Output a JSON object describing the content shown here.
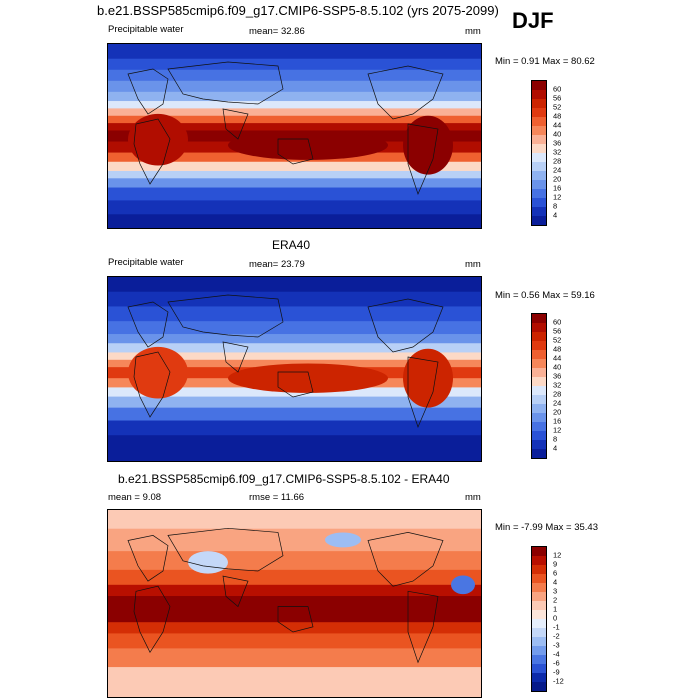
{
  "header": {
    "title": "b.e21.BSSP585cmip6.f09_g17.CMIP6-SSP5-8.5.102 (yrs 2075-2099)",
    "season": "DJF"
  },
  "panel1": {
    "variable": "Precipitable water",
    "mean_label": "mean=  32.86",
    "units": "mm",
    "minmax": "Min =   0.91 Max =  80.62",
    "colorbar_labels": [
      "60",
      "56",
      "52",
      "48",
      "44",
      "40",
      "36",
      "32",
      "28",
      "24",
      "20",
      "16",
      "12",
      "8",
      "4"
    ]
  },
  "panel2": {
    "title": "ERA40",
    "variable": "Precipitable water",
    "mean_label": "mean=  23.79",
    "units": "mm",
    "minmax": "Min =   0.56 Max =  59.16",
    "colorbar_labels": [
      "60",
      "56",
      "52",
      "48",
      "44",
      "40",
      "36",
      "32",
      "28",
      "24",
      "20",
      "16",
      "12",
      "8",
      "4"
    ]
  },
  "panel3": {
    "title": "b.e21.BSSP585cmip6.f09_g17.CMIP6-SSP5-8.5.102 - ERA40",
    "mean_label": "mean =    9.08",
    "rmse_label": "rmse =  11.66",
    "units": "mm",
    "minmax": "Min =  -7.99 Max =  35.43",
    "colorbar_labels": [
      "12",
      "9",
      "6",
      "4",
      "3",
      "2",
      "1",
      "0",
      "-1",
      "-2",
      "-3",
      "-4",
      "-6",
      "-9",
      "-12"
    ]
  },
  "colors": {
    "seq": [
      "#8b0000",
      "#b10d00",
      "#cc2400",
      "#e03a10",
      "#ef6030",
      "#f6875a",
      "#fab196",
      "#fcd9c6",
      "#dce8fb",
      "#b8d0f6",
      "#8fb2f0",
      "#6a93ea",
      "#4772e3",
      "#2a52d6",
      "#1432b8",
      "#0a1e9a"
    ],
    "diff": [
      "#8b0000",
      "#b80f00",
      "#d42e05",
      "#ea5421",
      "#f47c4c",
      "#f9a481",
      "#fccab5",
      "#fde6da",
      "#e6effc",
      "#c4d8f8",
      "#9cbdf3",
      "#739cec",
      "#4a76e2",
      "#2a52d3",
      "#0c2aaa",
      "#061a8a"
    ]
  }
}
